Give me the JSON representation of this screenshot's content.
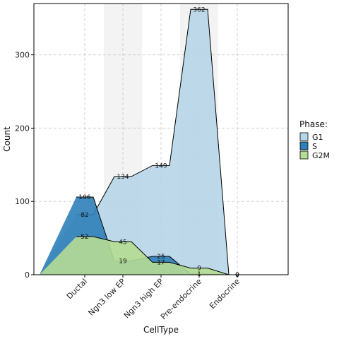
{
  "chart_data": {
    "type": "area",
    "xlabel": "CellType",
    "ylabel": "Count",
    "categories": [
      "Ductal",
      "Ngn3 low EP",
      "Ngn3 high EP",
      "Pre-endocrine",
      "Endocrine"
    ],
    "yticks": [
      0,
      100,
      200,
      300
    ],
    "ylim": [
      0,
      370
    ],
    "grid": true,
    "legend": {
      "title": "Phase:",
      "position": "right"
    },
    "series": [
      {
        "name": "G1",
        "color": "#b7d6e8",
        "values": [
          82,
          134,
          149,
          362,
          0
        ]
      },
      {
        "name": "S",
        "color": "#2f7fb8",
        "values": [
          106,
          19,
          25,
          1,
          0
        ]
      },
      {
        "name": "G2M",
        "color": "#b5dc94",
        "values": [
          52,
          45,
          17,
          9,
          0
        ]
      }
    ]
  }
}
